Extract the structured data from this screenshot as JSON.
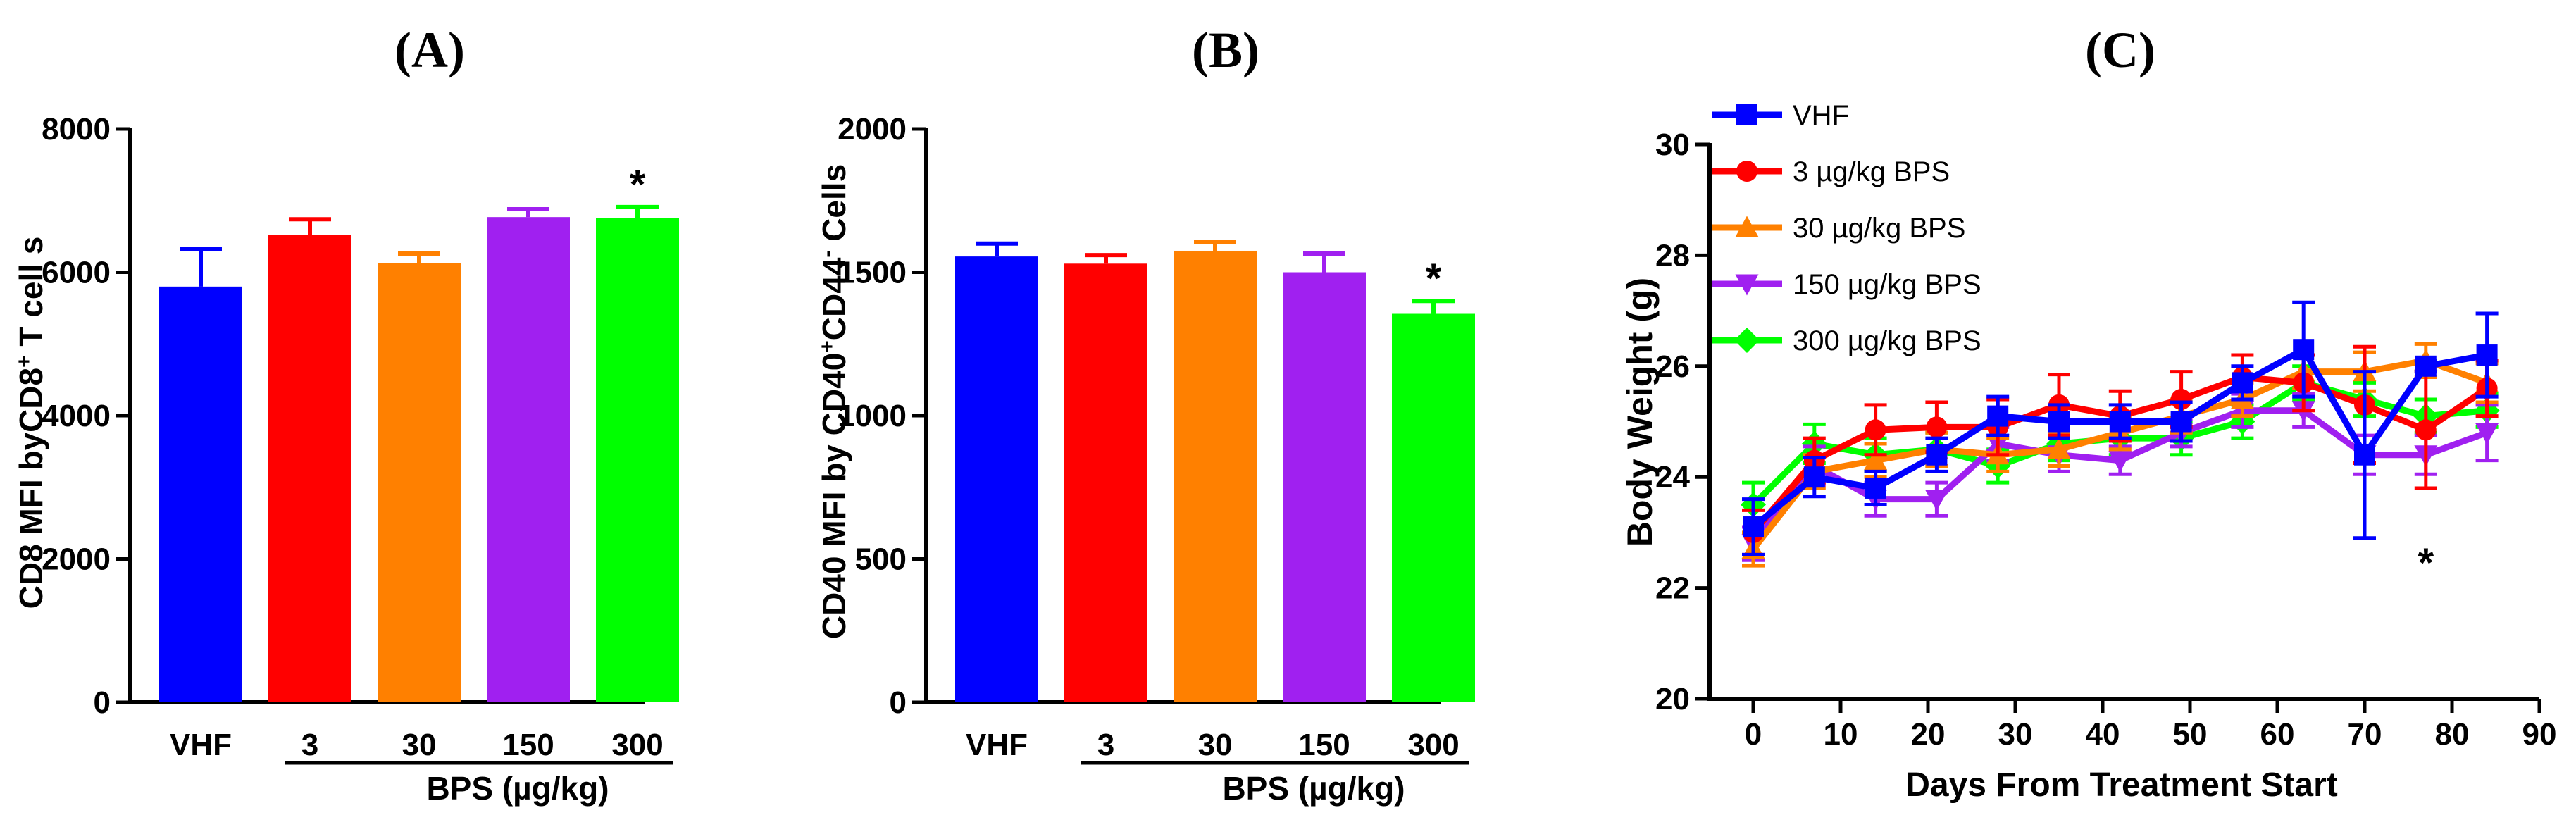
{
  "chart_data": [
    {
      "type": "bar",
      "panel": "(A)",
      "ylabel_parts": [
        "CD8 MFI byCD8",
        "+",
        " T cell s"
      ],
      "xgroup_label": "BPS (µg/kg)",
      "categories": [
        "VHF",
        "3",
        "30",
        "150",
        "300"
      ],
      "values": [
        5800,
        6520,
        6130,
        6770,
        6760
      ],
      "errors": [
        520,
        220,
        130,
        110,
        150
      ],
      "colors": [
        "#0000ff",
        "#ff0000",
        "#ff8000",
        "#a020f0",
        "#00ff00"
      ],
      "ylim": [
        0,
        8000
      ],
      "yticks": [
        "0",
        "2000",
        "4000",
        "6000",
        "8000"
      ],
      "annotations": [
        {
          "category": "300",
          "text": "*"
        }
      ]
    },
    {
      "type": "bar",
      "panel": "(B)",
      "ylabel_parts": [
        "CD40 MFI by CD40",
        "+",
        "CD44",
        "-",
        " Cells"
      ],
      "xgroup_label": "BPS (µg/kg)",
      "categories": [
        "VHF",
        "3",
        "30",
        "150",
        "300"
      ],
      "values": [
        1555,
        1530,
        1575,
        1500,
        1355
      ],
      "errors": [
        45,
        30,
        30,
        65,
        45
      ],
      "colors": [
        "#0000ff",
        "#ff0000",
        "#ff8000",
        "#a020f0",
        "#00ff00"
      ],
      "ylim": [
        0,
        2000
      ],
      "yticks": [
        "0",
        "500",
        "1000",
        "1500",
        "2000"
      ],
      "annotations": [
        {
          "category": "300",
          "text": "*"
        }
      ]
    },
    {
      "type": "line",
      "panel": "(C)",
      "xlabel": "Days From Treatment Start",
      "ylabel": "Body Weight (g)",
      "xlim": [
        -5,
        90
      ],
      "ylim": [
        20,
        30
      ],
      "xticks": [
        "0",
        "10",
        "20",
        "30",
        "40",
        "50",
        "60",
        "70",
        "80",
        "90"
      ],
      "yticks": [
        "20",
        "22",
        "24",
        "26",
        "28",
        "30"
      ],
      "x": [
        0,
        7,
        14,
        21,
        28,
        35,
        42,
        49,
        56,
        63,
        70,
        77,
        84
      ],
      "series": [
        {
          "name": "VHF",
          "color": "#0000ff",
          "marker": "square",
          "values": [
            23.1,
            24.0,
            23.8,
            24.4,
            25.1,
            25.0,
            25.0,
            25.0,
            25.7,
            26.3,
            24.4,
            26.0,
            26.2
          ],
          "errors": [
            0.5,
            0.35,
            0.3,
            0.3,
            0.35,
            0.3,
            0.3,
            0.35,
            0.3,
            0.85,
            1.5,
            0.1,
            0.75
          ]
        },
        {
          "name": "3 µg/kg BPS",
          "color": "#ff0000",
          "marker": "circle",
          "values": [
            23.0,
            24.3,
            24.85,
            24.9,
            24.9,
            25.3,
            25.1,
            25.4,
            25.8,
            25.7,
            25.3,
            24.85,
            25.6
          ],
          "errors": [
            0.4,
            0.4,
            0.45,
            0.45,
            0.5,
            0.55,
            0.45,
            0.5,
            0.4,
            0.5,
            1.05,
            1.05,
            0.5
          ]
        },
        {
          "name": "30 µg/kg BPS",
          "color": "#ff8000",
          "marker": "triangle-up",
          "values": [
            22.7,
            24.1,
            24.3,
            24.5,
            24.4,
            24.5,
            24.8,
            25.1,
            25.4,
            25.9,
            25.9,
            26.1,
            25.7
          ],
          "errors": [
            0.3,
            0.3,
            0.3,
            0.3,
            0.3,
            0.3,
            0.3,
            0.3,
            0.3,
            0.3,
            0.35,
            0.3,
            0.35
          ]
        },
        {
          "name": "150 µg/kg BPS",
          "color": "#a020f0",
          "marker": "triangle-down",
          "values": [
            22.8,
            24.2,
            23.6,
            23.6,
            24.6,
            24.4,
            24.3,
            24.8,
            25.2,
            25.2,
            24.4,
            24.4,
            24.8
          ],
          "errors": [
            0.3,
            0.35,
            0.3,
            0.3,
            0.3,
            0.3,
            0.25,
            0.25,
            0.3,
            0.3,
            0.35,
            0.35,
            0.5
          ]
        },
        {
          "name": "300 µg/kg BPS",
          "color": "#00ff00",
          "marker": "diamond",
          "values": [
            23.5,
            24.6,
            24.4,
            24.5,
            24.2,
            24.6,
            24.7,
            24.7,
            25.0,
            25.7,
            25.4,
            25.1,
            25.2
          ],
          "errors": [
            0.4,
            0.35,
            0.3,
            0.3,
            0.3,
            0.3,
            0.3,
            0.3,
            0.3,
            0.3,
            0.3,
            0.3,
            0.3
          ]
        }
      ],
      "annotations": [
        {
          "x": 77,
          "y": 22.45,
          "text": "*"
        }
      ]
    }
  ]
}
